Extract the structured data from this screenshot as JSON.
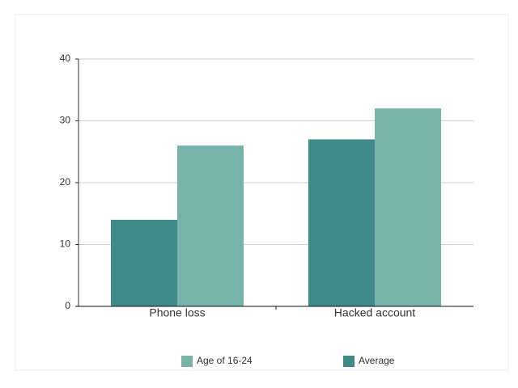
{
  "chart_data": {
    "type": "bar",
    "categories": [
      "Phone loss",
      "Hacked account"
    ],
    "series": [
      {
        "name": "Average",
        "color": "#3f8b89",
        "values": [
          14,
          27
        ]
      },
      {
        "name": "Age of 16-24",
        "color": "#78b3ab",
        "values": [
          26,
          32
        ]
      }
    ],
    "ylim": [
      0,
      40
    ],
    "yticks": [
      0,
      10,
      20,
      30,
      40
    ],
    "grid": true
  }
}
